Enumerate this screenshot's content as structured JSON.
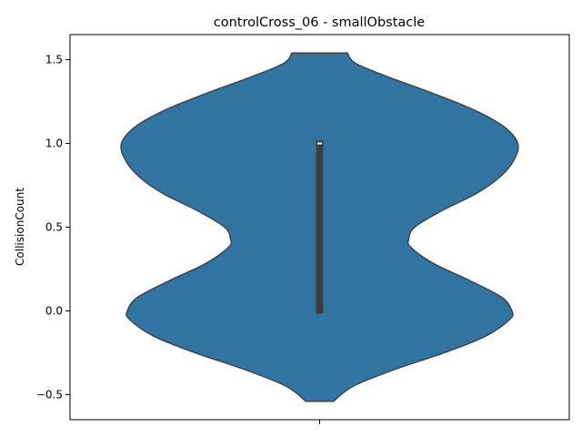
{
  "chart_data": {
    "type": "violin",
    "title": "controlCross_06 - smallObstacle",
    "xlabel": "",
    "ylabel": "CollisionCount",
    "ylim": [
      -0.65,
      1.65
    ],
    "yticks": [
      -0.5,
      0.0,
      0.5,
      1.0,
      1.5
    ],
    "ytick_labels": [
      "−0.5",
      "0.0",
      "0.5",
      "1.0",
      "1.5"
    ],
    "grid": false,
    "fill_color": "#3274a1",
    "edge_color": "#3d3d3d",
    "violin": {
      "min": -0.54,
      "max": 1.54,
      "density_profile": [
        {
          "y": -0.54,
          "w": 0.07
        },
        {
          "y": -0.45,
          "w": 0.17
        },
        {
          "y": -0.35,
          "w": 0.38
        },
        {
          "y": -0.25,
          "w": 0.63
        },
        {
          "y": -0.15,
          "w": 0.84
        },
        {
          "y": -0.05,
          "w": 0.96
        },
        {
          "y": 0.0,
          "w": 0.97
        },
        {
          "y": 0.08,
          "w": 0.92
        },
        {
          "y": 0.18,
          "w": 0.76
        },
        {
          "y": 0.28,
          "w": 0.58
        },
        {
          "y": 0.38,
          "w": 0.46
        },
        {
          "y": 0.43,
          "w": 0.45
        },
        {
          "y": 0.5,
          "w": 0.48
        },
        {
          "y": 0.6,
          "w": 0.62
        },
        {
          "y": 0.7,
          "w": 0.79
        },
        {
          "y": 0.8,
          "w": 0.91
        },
        {
          "y": 0.9,
          "w": 0.98
        },
        {
          "y": 1.0,
          "w": 1.0
        },
        {
          "y": 1.1,
          "w": 0.93
        },
        {
          "y": 1.2,
          "w": 0.78
        },
        {
          "y": 1.3,
          "w": 0.57
        },
        {
          "y": 1.4,
          "w": 0.34
        },
        {
          "y": 1.48,
          "w": 0.18
        },
        {
          "y": 1.54,
          "w": 0.14
        }
      ]
    },
    "box": {
      "q1": 0.0,
      "median": 1.0,
      "q3": 1.0,
      "whisker_low": 0.0,
      "whisker_high": 1.0
    }
  }
}
